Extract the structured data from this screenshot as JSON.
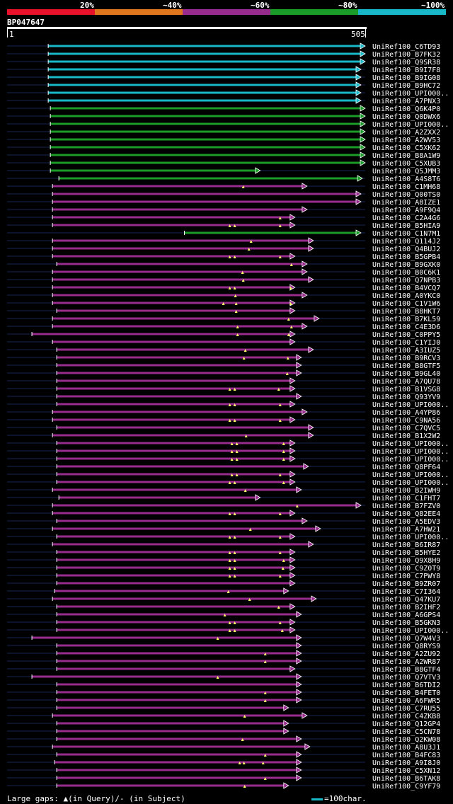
{
  "legend": [
    {
      "label": "20%",
      "color": "#e8132a"
    },
    {
      "label": "~40%",
      "color": "#e0761e"
    },
    {
      "label": "~60%",
      "color": "#982b8e"
    },
    {
      "label": "~80%",
      "color": "#1b9b28"
    },
    {
      "label": "~100%",
      "color": "#19b8c8"
    }
  ],
  "query": {
    "id": "BP047647",
    "start": "1",
    "end": "505"
  },
  "footer": {
    "large_gaps": "Large gaps:",
    "in_query": "(in Query)/",
    "in_subject": "(in Subject)",
    "scale_key": "=100char."
  },
  "chart_data": {
    "type": "alignment",
    "query_length": 505,
    "colors": {
      "cyan": "#19b8c8",
      "green": "#1b9b28",
      "purple": "#982b8e",
      "line": "#1a2356"
    },
    "hits": [
      {
        "name": "UniRef100_C6TD93",
        "start": 58,
        "end": 505,
        "color": "cyan",
        "gaps": []
      },
      {
        "name": "UniRef100_B7FK32",
        "start": 58,
        "end": 505,
        "color": "cyan",
        "gaps": []
      },
      {
        "name": "UniRef100_Q9SR38",
        "start": 58,
        "end": 505,
        "color": "cyan",
        "gaps": []
      },
      {
        "name": "UniRef100_B9I7F8",
        "start": 58,
        "end": 499,
        "color": "cyan",
        "gaps": []
      },
      {
        "name": "UniRef100_B9IG08",
        "start": 58,
        "end": 499,
        "color": "cyan",
        "gaps": []
      },
      {
        "name": "UniRef100_B9HC72",
        "start": 58,
        "end": 499,
        "color": "cyan",
        "gaps": []
      },
      {
        "name": "UniRef100_UPI000..",
        "start": 58,
        "end": 499,
        "color": "cyan",
        "gaps": []
      },
      {
        "name": "UniRef100_A7PNX3",
        "start": 58,
        "end": 499,
        "color": "cyan",
        "gaps": []
      },
      {
        "name": "UniRef100_Q6K4P0",
        "start": 61,
        "end": 505,
        "color": "green",
        "gaps": []
      },
      {
        "name": "UniRef100_Q0DWX6",
        "start": 61,
        "end": 505,
        "color": "green",
        "gaps": []
      },
      {
        "name": "UniRef100_UPI000..",
        "start": 61,
        "end": 505,
        "color": "green",
        "gaps": []
      },
      {
        "name": "UniRef100_A2ZXX2",
        "start": 61,
        "end": 505,
        "color": "green",
        "gaps": []
      },
      {
        "name": "UniRef100_A2WV53",
        "start": 61,
        "end": 505,
        "color": "green",
        "gaps": []
      },
      {
        "name": "UniRef100_C5XK62",
        "start": 61,
        "end": 505,
        "color": "green",
        "gaps": []
      },
      {
        "name": "UniRef100_B8A1W9",
        "start": 61,
        "end": 505,
        "color": "green",
        "gaps": []
      },
      {
        "name": "UniRef100_C5XUB3",
        "start": 61,
        "end": 505,
        "color": "green",
        "gaps": []
      },
      {
        "name": "UniRef100_Q5JMM3",
        "start": 61,
        "end": 357,
        "color": "green",
        "gaps": []
      },
      {
        "name": "UniRef100_A4S8T6",
        "start": 73,
        "end": 501,
        "color": "green",
        "gaps": []
      },
      {
        "name": "UniRef100_C1MH68",
        "start": 64,
        "end": 423,
        "color": "purple",
        "gaps": [
          333
        ]
      },
      {
        "name": "UniRef100_Q00TS0",
        "start": 64,
        "end": 499,
        "color": "purple",
        "gaps": []
      },
      {
        "name": "UniRef100_A8IZE1",
        "start": 64,
        "end": 499,
        "color": "purple",
        "gaps": []
      },
      {
        "name": "UniRef100_A9F9Q4",
        "start": 64,
        "end": 423,
        "color": "purple",
        "gaps": []
      },
      {
        "name": "UniRef100_C2A4G6",
        "start": 64,
        "end": 406,
        "color": "purple",
        "gaps": [
          385
        ]
      },
      {
        "name": "UniRef100_B5HIA9",
        "start": 64,
        "end": 406,
        "color": "purple",
        "gaps": [
          314,
          321,
          385
        ]
      },
      {
        "name": "UniRef100_C1N7M1",
        "start": 250,
        "end": 499,
        "color": "green",
        "gaps": []
      },
      {
        "name": "UniRef100_Q114J2",
        "start": 64,
        "end": 432,
        "color": "purple",
        "gaps": [
          344
        ]
      },
      {
        "name": "UniRef100_Q4BUJ2",
        "start": 64,
        "end": 432,
        "color": "purple",
        "gaps": [
          341
        ]
      },
      {
        "name": "UniRef100_B5GPB4",
        "start": 64,
        "end": 406,
        "color": "purple",
        "gaps": [
          314,
          321,
          385
        ]
      },
      {
        "name": "UniRef100_B9GXK0",
        "start": 70,
        "end": 423,
        "color": "purple",
        "gaps": [
          401
        ]
      },
      {
        "name": "UniRef100_B0C6K1",
        "start": 64,
        "end": 423,
        "color": "purple",
        "gaps": [
          332
        ]
      },
      {
        "name": "UniRef100_Q7NPB3",
        "start": 64,
        "end": 432,
        "color": "purple",
        "gaps": [
          333
        ]
      },
      {
        "name": "UniRef100_B4VCQ7",
        "start": 64,
        "end": 406,
        "color": "purple",
        "gaps": [
          314,
          321,
          400
        ]
      },
      {
        "name": "UniRef100_A0YKC0",
        "start": 64,
        "end": 423,
        "color": "purple",
        "gaps": [
          322
        ]
      },
      {
        "name": "UniRef100_C1V1W6",
        "start": 64,
        "end": 406,
        "color": "purple",
        "gaps": [
          305,
          323,
          400
        ]
      },
      {
        "name": "UniRef100_B8HKT7",
        "start": 70,
        "end": 406,
        "color": "purple",
        "gaps": [
          323
        ]
      },
      {
        "name": "UniRef100_B7KL59",
        "start": 64,
        "end": 440,
        "color": "purple",
        "gaps": [
          397
        ]
      },
      {
        "name": "UniRef100_C4E3D6",
        "start": 64,
        "end": 423,
        "color": "purple",
        "gaps": [
          325,
          401
        ]
      },
      {
        "name": "UniRef100_C0PPY5",
        "start": 35,
        "end": 406,
        "color": "purple",
        "gaps": [
          325,
          397
        ]
      },
      {
        "name": "UniRef100_C1YIJ0",
        "start": 64,
        "end": 406,
        "color": "purple",
        "gaps": []
      },
      {
        "name": "UniRef100_A3IUZ5",
        "start": 70,
        "end": 432,
        "color": "purple",
        "gaps": [
          336
        ]
      },
      {
        "name": "UniRef100_B9RCV3",
        "start": 70,
        "end": 415,
        "color": "purple",
        "gaps": [
          334,
          396
        ]
      },
      {
        "name": "UniRef100_B8GTF5",
        "start": 70,
        "end": 415,
        "color": "purple",
        "gaps": []
      },
      {
        "name": "UniRef100_B9GL40",
        "start": 70,
        "end": 415,
        "color": "purple",
        "gaps": [
          395
        ]
      },
      {
        "name": "UniRef100_A7QU78",
        "start": 70,
        "end": 406,
        "color": "purple",
        "gaps": []
      },
      {
        "name": "UniRef100_B1VSG8",
        "start": 70,
        "end": 406,
        "color": "purple",
        "gaps": [
          314,
          321,
          383
        ]
      },
      {
        "name": "UniRef100_Q93YV9",
        "start": 70,
        "end": 415,
        "color": "purple",
        "gaps": []
      },
      {
        "name": "UniRef100_UPI000..",
        "start": 70,
        "end": 406,
        "color": "purple",
        "gaps": [
          314,
          321,
          385
        ]
      },
      {
        "name": "UniRef100_A4YP86",
        "start": 64,
        "end": 423,
        "color": "purple",
        "gaps": []
      },
      {
        "name": "UniRef100_C9NA56",
        "start": 64,
        "end": 406,
        "color": "purple",
        "gaps": [
          314,
          321,
          385
        ]
      },
      {
        "name": "UniRef100_C7QVC5",
        "start": 70,
        "end": 432,
        "color": "purple",
        "gaps": []
      },
      {
        "name": "UniRef100_B1X2W2",
        "start": 64,
        "end": 432,
        "color": "purple",
        "gaps": [
          337
        ]
      },
      {
        "name": "UniRef100_UPI000..",
        "start": 70,
        "end": 406,
        "color": "purple",
        "gaps": [
          317,
          324,
          390
        ]
      },
      {
        "name": "UniRef100_UPI000..",
        "start": 70,
        "end": 406,
        "color": "purple",
        "gaps": [
          317,
          324,
          390
        ]
      },
      {
        "name": "UniRef100_UPI000..",
        "start": 70,
        "end": 406,
        "color": "purple",
        "gaps": [
          317,
          324,
          390
        ]
      },
      {
        "name": "UniRef100_Q8PF64",
        "start": 70,
        "end": 425,
        "color": "purple",
        "gaps": []
      },
      {
        "name": "UniRef100_UPI000..",
        "start": 70,
        "end": 406,
        "color": "purple",
        "gaps": [
          317,
          324,
          385
        ]
      },
      {
        "name": "UniRef100_UPI000..",
        "start": 70,
        "end": 406,
        "color": "purple",
        "gaps": [
          314,
          321,
          390
        ]
      },
      {
        "name": "UniRef100_B2IWH9",
        "start": 64,
        "end": 415,
        "color": "purple",
        "gaps": [
          336
        ]
      },
      {
        "name": "UniRef100_C1FHT7",
        "start": 73,
        "end": 357,
        "color": "purple",
        "gaps": []
      },
      {
        "name": "UniRef100_B7FZV0",
        "start": 64,
        "end": 499,
        "color": "purple",
        "gaps": [
          409
        ]
      },
      {
        "name": "UniRef100_Q82EE4",
        "start": 64,
        "end": 406,
        "color": "purple",
        "gaps": [
          314,
          321,
          385
        ]
      },
      {
        "name": "UniRef100_A5EDV3",
        "start": 70,
        "end": 423,
        "color": "purple",
        "gaps": []
      },
      {
        "name": "UniRef100_A7HW21",
        "start": 64,
        "end": 442,
        "color": "purple",
        "gaps": [
          343
        ]
      },
      {
        "name": "UniRef100_UPI000..",
        "start": 70,
        "end": 406,
        "color": "purple",
        "gaps": [
          314,
          321,
          385
        ]
      },
      {
        "name": "UniRef100_B6IR87",
        "start": 64,
        "end": 432,
        "color": "purple",
        "gaps": []
      },
      {
        "name": "UniRef100_B5HYE2",
        "start": 70,
        "end": 406,
        "color": "purple",
        "gaps": [
          314,
          321,
          385
        ]
      },
      {
        "name": "UniRef100_Q9X8H9",
        "start": 70,
        "end": 406,
        "color": "purple",
        "gaps": [
          314,
          321,
          390
        ]
      },
      {
        "name": "UniRef100_C9Z0T9",
        "start": 70,
        "end": 406,
        "color": "purple",
        "gaps": [
          314,
          321,
          389
        ]
      },
      {
        "name": "UniRef100_C7PWY8",
        "start": 70,
        "end": 406,
        "color": "purple",
        "gaps": [
          314,
          321,
          385
        ]
      },
      {
        "name": "UniRef100_B9ZR07",
        "start": 70,
        "end": 406,
        "color": "purple",
        "gaps": []
      },
      {
        "name": "UniRef100_C7I364",
        "start": 67,
        "end": 397,
        "color": "purple",
        "gaps": [
          312
        ]
      },
      {
        "name": "UniRef100_Q47KU7",
        "start": 64,
        "end": 436,
        "color": "purple",
        "gaps": [
          342
        ]
      },
      {
        "name": "UniRef100_B2IHF2",
        "start": 70,
        "end": 406,
        "color": "purple",
        "gaps": [
          383
        ]
      },
      {
        "name": "UniRef100_A6GPS4",
        "start": 70,
        "end": 415,
        "color": "purple",
        "gaps": [
          307
        ]
      },
      {
        "name": "UniRef100_B5GKN3",
        "start": 70,
        "end": 406,
        "color": "purple",
        "gaps": [
          314,
          321,
          385
        ]
      },
      {
        "name": "UniRef100_UPI000..",
        "start": 70,
        "end": 406,
        "color": "purple",
        "gaps": [
          314,
          321,
          388
        ]
      },
      {
        "name": "UniRef100_Q7W4V3",
        "start": 35,
        "end": 415,
        "color": "purple",
        "gaps": [
          297
        ]
      },
      {
        "name": "UniRef100_Q8RYS9",
        "start": 70,
        "end": 415,
        "color": "purple",
        "gaps": []
      },
      {
        "name": "UniRef100_A2ZU92",
        "start": 70,
        "end": 415,
        "color": "purple",
        "gaps": [
          364
        ]
      },
      {
        "name": "UniRef100_A2WR87",
        "start": 70,
        "end": 415,
        "color": "purple",
        "gaps": [
          364
        ]
      },
      {
        "name": "UniRef100_B8GTF4",
        "start": 70,
        "end": 406,
        "color": "purple",
        "gaps": []
      },
      {
        "name": "UniRef100_Q7VTV3",
        "start": 35,
        "end": 415,
        "color": "purple",
        "gaps": [
          297
        ]
      },
      {
        "name": "UniRef100_B6TDI2",
        "start": 70,
        "end": 415,
        "color": "purple",
        "gaps": []
      },
      {
        "name": "UniRef100_B4FET0",
        "start": 70,
        "end": 415,
        "color": "purple",
        "gaps": [
          364
        ]
      },
      {
        "name": "UniRef100_A6FWR5",
        "start": 70,
        "end": 415,
        "color": "purple",
        "gaps": [
          364
        ]
      },
      {
        "name": "UniRef100_C7RU55",
        "start": 70,
        "end": 397,
        "color": "purple",
        "gaps": []
      },
      {
        "name": "UniRef100_C4ZKB8",
        "start": 64,
        "end": 423,
        "color": "purple",
        "gaps": [
          335
        ]
      },
      {
        "name": "UniRef100_Q12GP4",
        "start": 70,
        "end": 397,
        "color": "purple",
        "gaps": []
      },
      {
        "name": "UniRef100_C5CN78",
        "start": 70,
        "end": 397,
        "color": "purple",
        "gaps": []
      },
      {
        "name": "UniRef100_Q2KW08",
        "start": 70,
        "end": 415,
        "color": "purple",
        "gaps": [
          332
        ]
      },
      {
        "name": "UniRef100_A8U3J1",
        "start": 64,
        "end": 427,
        "color": "purple",
        "gaps": []
      },
      {
        "name": "UniRef100_B4FC83",
        "start": 70,
        "end": 415,
        "color": "purple",
        "gaps": [
          364
        ]
      },
      {
        "name": "UniRef100_A9I8J0",
        "start": 67,
        "end": 415,
        "color": "purple",
        "gaps": [
          328,
          334,
          361
        ]
      },
      {
        "name": "UniRef100_C5XN12",
        "start": 70,
        "end": 415,
        "color": "purple",
        "gaps": []
      },
      {
        "name": "UniRef100_B6TAK8",
        "start": 70,
        "end": 415,
        "color": "purple",
        "gaps": [
          364
        ]
      },
      {
        "name": "UniRef100_C9YF79",
        "start": 70,
        "end": 397,
        "color": "purple",
        "gaps": [
          335
        ]
      }
    ]
  }
}
